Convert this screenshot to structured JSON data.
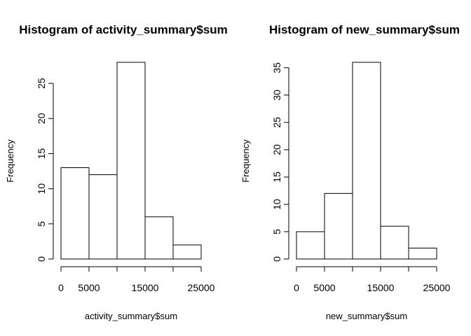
{
  "chart_data": [
    {
      "type": "bar",
      "title": "Histogram of activity_summary$sum",
      "xlabel": "activity_summary$sum",
      "ylabel": "Frequency",
      "bins": [
        {
          "from": 0,
          "to": 5000,
          "count": 13
        },
        {
          "from": 5000,
          "to": 10000,
          "count": 12
        },
        {
          "from": 10000,
          "to": 15000,
          "count": 28
        },
        {
          "from": 15000,
          "to": 20000,
          "count": 6
        },
        {
          "from": 20000,
          "to": 25000,
          "count": 2
        }
      ],
      "xlim": [
        0,
        25000
      ],
      "ylim": [
        0,
        28
      ],
      "x_ticks": [
        0,
        5000,
        10000,
        15000,
        20000,
        25000
      ],
      "x_tick_labels": [
        "0",
        "5000",
        "",
        "15000",
        "",
        "25000"
      ],
      "y_ticks": [
        0,
        5,
        10,
        15,
        20,
        25
      ],
      "y_tick_labels": [
        "0",
        "5",
        "10",
        "15",
        "20",
        "25"
      ],
      "grid": false,
      "legend": "none"
    },
    {
      "type": "bar",
      "title": "Histogram of new_summary$sum",
      "xlabel": "new_summary$sum",
      "ylabel": "Frequency",
      "bins": [
        {
          "from": 0,
          "to": 5000,
          "count": 5
        },
        {
          "from": 5000,
          "to": 10000,
          "count": 12
        },
        {
          "from": 10000,
          "to": 15000,
          "count": 36
        },
        {
          "from": 15000,
          "to": 20000,
          "count": 6
        },
        {
          "from": 20000,
          "to": 25000,
          "count": 2
        }
      ],
      "xlim": [
        0,
        25000
      ],
      "ylim": [
        0,
        36
      ],
      "x_ticks": [
        0,
        5000,
        10000,
        15000,
        20000,
        25000
      ],
      "x_tick_labels": [
        "0",
        "5000",
        "",
        "15000",
        "",
        "25000"
      ],
      "y_ticks": [
        0,
        5,
        10,
        15,
        20,
        25,
        30,
        35
      ],
      "y_tick_labels": [
        "0",
        "5",
        "10",
        "15",
        "20",
        "25",
        "30",
        "35"
      ],
      "grid": false,
      "legend": "none"
    }
  ]
}
